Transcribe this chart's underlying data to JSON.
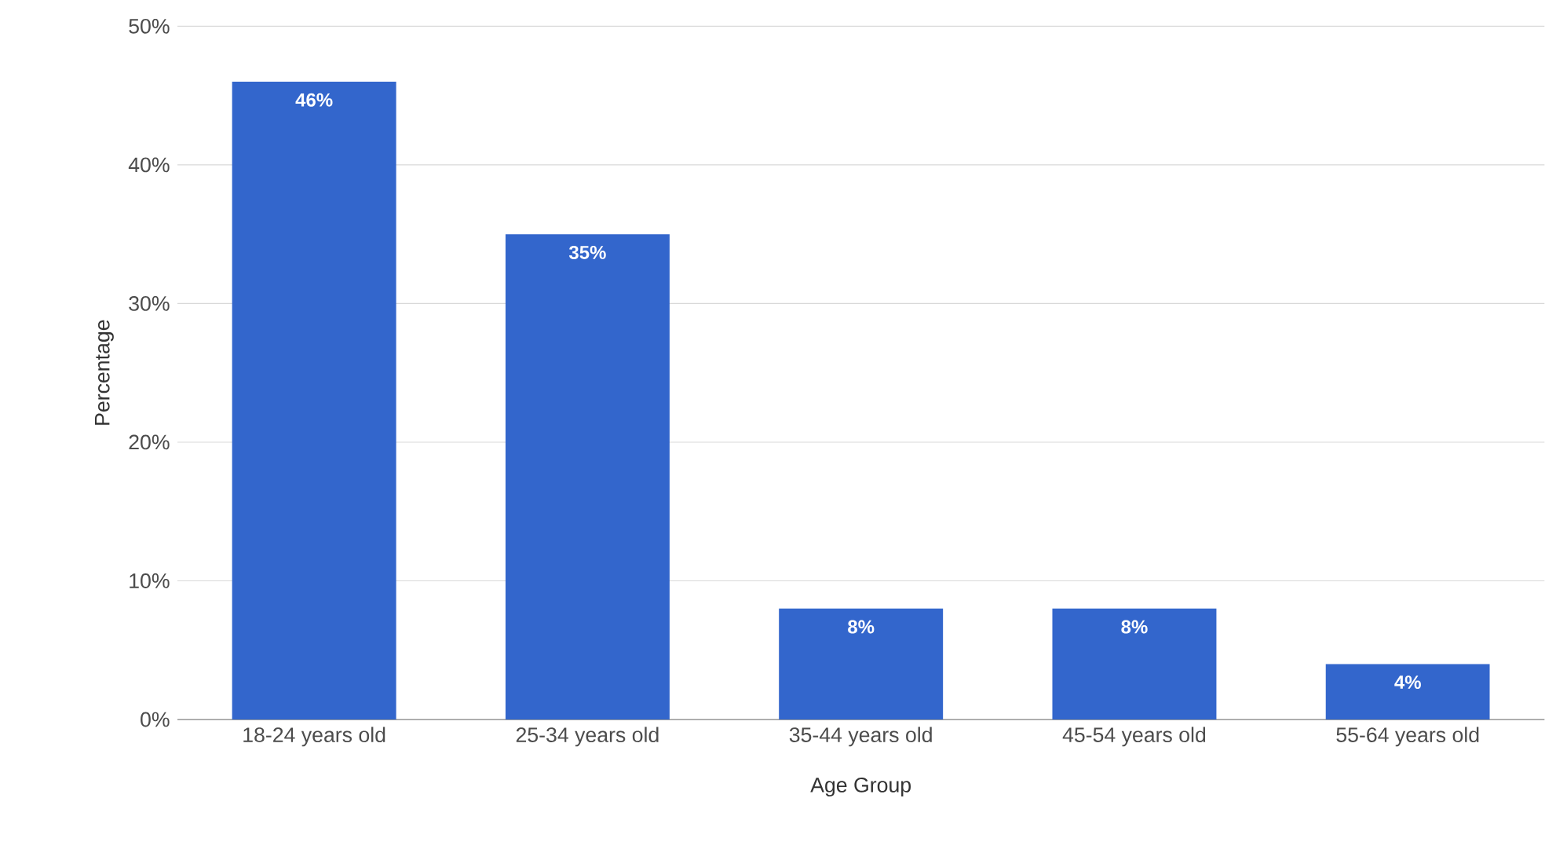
{
  "chart_data": {
    "type": "bar",
    "categories": [
      "18-24 years old",
      "25-34 years old",
      "35-44 years old",
      "45-54 years old",
      "55-64 years old"
    ],
    "values": [
      46,
      35,
      8,
      8,
      4
    ],
    "value_labels": [
      "46%",
      "35%",
      "8%",
      "8%",
      "4%"
    ],
    "color": "#3366cc",
    "xlabel": "Age Group",
    "ylabel": "Percentage",
    "ylim": [
      0,
      50
    ],
    "yticks": [
      {
        "value": 0,
        "label": "0%"
      },
      {
        "value": 10,
        "label": "10%"
      },
      {
        "value": 20,
        "label": "20%"
      },
      {
        "value": 30,
        "label": "30%"
      },
      {
        "value": 40,
        "label": "40%"
      },
      {
        "value": 50,
        "label": "50%"
      }
    ],
    "grid": "y"
  }
}
